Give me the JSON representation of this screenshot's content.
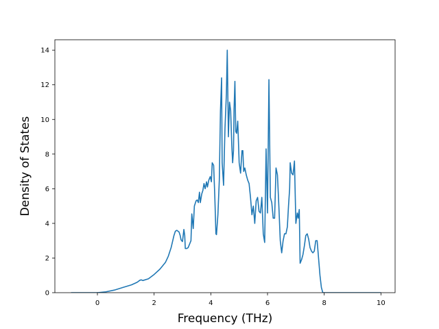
{
  "chart_data": {
    "type": "line",
    "title": "",
    "xlabel": "Frequency (THz)",
    "ylabel": "Density of States",
    "xlim": [
      -1.5,
      10.5
    ],
    "ylim": [
      0,
      14.6
    ],
    "xticks": [
      0,
      2,
      4,
      6,
      8,
      10
    ],
    "yticks": [
      0,
      2,
      4,
      6,
      8,
      10,
      12,
      14
    ],
    "grid": false,
    "legend": "none",
    "series": [
      {
        "color": "#1f77b4",
        "x": [
          -0.93,
          0.0,
          0.3,
          0.6,
          0.9,
          1.2,
          1.4,
          1.5,
          1.55,
          1.6,
          1.8,
          2.0,
          2.2,
          2.3,
          2.4,
          2.5,
          2.6,
          2.7,
          2.75,
          2.8,
          2.88,
          2.92,
          2.95,
          3.0,
          3.05,
          3.08,
          3.1,
          3.15,
          3.2,
          3.3,
          3.33,
          3.38,
          3.42,
          3.48,
          3.52,
          3.56,
          3.6,
          3.63,
          3.68,
          3.72,
          3.76,
          3.8,
          3.85,
          3.88,
          3.93,
          3.98,
          4.02,
          4.05,
          4.1,
          4.14,
          4.18,
          4.2,
          4.25,
          4.3,
          4.34,
          4.38,
          4.4,
          4.45,
          4.5,
          4.55,
          4.58,
          4.62,
          4.66,
          4.7,
          4.74,
          4.77,
          4.8,
          4.82,
          4.85,
          4.88,
          4.91,
          4.95,
          5.0,
          5.05,
          5.1,
          5.13,
          5.16,
          5.2,
          5.25,
          5.3,
          5.35,
          5.4,
          5.45,
          5.5,
          5.55,
          5.6,
          5.65,
          5.7,
          5.75,
          5.8,
          5.85,
          5.9,
          5.95,
          6.0,
          6.05,
          6.1,
          6.15,
          6.2,
          6.25,
          6.3,
          6.35,
          6.4,
          6.45,
          6.5,
          6.55,
          6.6,
          6.65,
          6.7,
          6.74,
          6.78,
          6.8,
          6.85,
          6.9,
          6.95,
          7.0,
          7.05,
          7.08,
          7.12,
          7.15,
          7.2,
          7.25,
          7.3,
          7.35,
          7.4,
          7.45,
          7.5,
          7.55,
          7.6,
          7.65,
          7.7,
          7.75,
          7.8,
          7.85,
          7.9,
          7.95,
          8.0,
          8.05,
          8.1,
          8.15,
          8.2,
          8.25,
          8.3,
          8.35,
          8.4,
          8.45,
          8.5,
          8.55,
          8.6,
          8.65,
          8.7,
          8.75,
          8.8,
          8.85,
          8.9,
          8.95,
          9.0,
          9.05,
          9.1,
          9.2,
          10.0
        ],
        "y": [
          0,
          0,
          0.05,
          0.15,
          0.3,
          0.45,
          0.6,
          0.72,
          0.74,
          0.7,
          0.8,
          1.05,
          1.35,
          1.55,
          1.75,
          2.1,
          2.6,
          3.3,
          3.55,
          3.6,
          3.5,
          3.3,
          3.05,
          2.95,
          3.65,
          3.3,
          2.55,
          2.55,
          2.6,
          3.0,
          4.55,
          3.7,
          5.0,
          5.3,
          5.35,
          5.2,
          5.8,
          5.2,
          5.7,
          5.9,
          6.3,
          6.0,
          6.4,
          6.1,
          6.5,
          6.7,
          6.4,
          7.5,
          7.35,
          5.6,
          3.4,
          3.35,
          4.5,
          6.5,
          10.5,
          12.4,
          7.5,
          6.2,
          9.5,
          11.5,
          14.0,
          9.0,
          11.0,
          10.5,
          8.5,
          7.5,
          8.2,
          10.6,
          12.2,
          9.3,
          9.2,
          9.9,
          7.5,
          6.9,
          8.2,
          8.2,
          7.0,
          7.2,
          6.8,
          6.5,
          6.3,
          5.5,
          4.5,
          5.0,
          4.0,
          5.3,
          5.5,
          4.7,
          4.6,
          5.5,
          3.4,
          2.9,
          8.3,
          4.6,
          12.3,
          5.5,
          5.2,
          4.3,
          4.3,
          7.2,
          6.8,
          5.0,
          3.0,
          2.3,
          3.0,
          3.4,
          3.4,
          3.8,
          5.0,
          6.0,
          7.5,
          6.9,
          6.8,
          7.6,
          4.0,
          4.6,
          4.3,
          4.8,
          1.7,
          1.9,
          2.2,
          2.7,
          3.3,
          3.4,
          3.1,
          2.6,
          2.4,
          2.3,
          2.4,
          3.0,
          3.0,
          2.0,
          1.0,
          0.3,
          0,
          0,
          0,
          0,
          0,
          0,
          0,
          0,
          0,
          0,
          0,
          0,
          0,
          0,
          0,
          0,
          0,
          0,
          0,
          0,
          0,
          0,
          0,
          0,
          0,
          0
        ]
      }
    ]
  }
}
